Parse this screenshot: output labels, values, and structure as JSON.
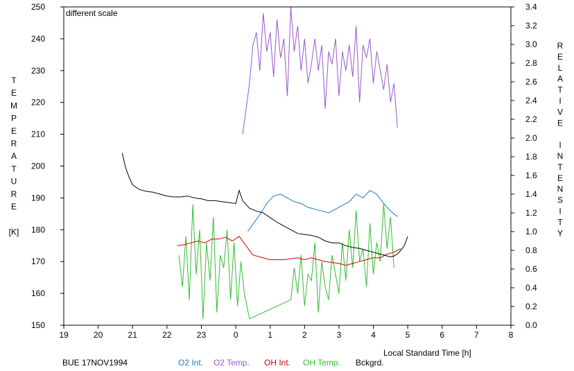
{
  "chart_data": {
    "type": "line",
    "title": "",
    "note": "different scale",
    "station_label": "BUE 17NOV1994",
    "xlabel": "Local Standard Time [h]",
    "ylabel_left_letters": [
      "T",
      "E",
      "M",
      "P",
      "E",
      "R",
      "A",
      "T",
      "U",
      "R",
      "E",
      "",
      "[K]"
    ],
    "ylabel_right_letters": [
      "R",
      "E",
      "L",
      "A",
      "T",
      "I",
      "V",
      "E",
      "",
      "I",
      "N",
      "T",
      "E",
      "N",
      "S",
      "I",
      "T",
      "Y"
    ],
    "x_ticks": [
      "19",
      "20",
      "21",
      "22",
      "23",
      "0",
      "1",
      "2",
      "3",
      "4",
      "5",
      "6",
      "7",
      "8"
    ],
    "x_range": [
      19,
      32
    ],
    "y_left_range": [
      150,
      250
    ],
    "y_left_ticks": [
      150,
      160,
      170,
      180,
      190,
      200,
      210,
      220,
      230,
      240,
      250
    ],
    "y_right_range": [
      0.0,
      3.4
    ],
    "y_right_ticks": [
      "0.0",
      "0.2",
      "0.4",
      "0.6",
      "0.8",
      "1.0",
      "1.2",
      "1.4",
      "1.6",
      "1.8",
      "2.0",
      "2.2",
      "2.4",
      "2.6",
      "2.8",
      "3.0",
      "3.2",
      "3.4"
    ],
    "colors": {
      "o2_int": "#2277cc",
      "o2_temp": "#9955cc",
      "oh_int": "#cc0000",
      "oh_temp": "#33bb33",
      "bckgrd": "#000000",
      "note": "#22bb22"
    },
    "legend": [
      {
        "key": "o2_int",
        "label": "O2 Int."
      },
      {
        "key": "o2_temp",
        "label": "O2 Temp."
      },
      {
        "key": "oh_int",
        "label": "OH Int."
      },
      {
        "key": "oh_temp",
        "label": "OH Temp."
      },
      {
        "key": "bckgrd",
        "label": "Bckgrd."
      }
    ],
    "series": [
      {
        "name": "Bckgrd.",
        "axis": "right",
        "key": "bckgrd",
        "x": [
          20.7,
          20.8,
          20.9,
          21.0,
          21.2,
          21.4,
          21.6,
          21.8,
          22.0,
          22.2,
          22.4,
          22.6,
          22.8,
          23.0,
          23.2,
          23.4,
          23.6,
          23.8,
          24.0,
          24.1,
          24.2,
          24.4,
          24.6,
          24.8,
          25.0,
          25.2,
          25.4,
          25.6,
          25.8,
          26.0,
          26.2,
          26.4,
          26.6,
          26.8,
          27.0,
          27.2,
          27.4,
          27.6,
          27.8,
          28.0,
          28.2,
          28.4,
          28.5,
          28.6,
          28.7,
          28.8,
          28.9,
          29.0
        ],
        "y": [
          1.84,
          1.68,
          1.58,
          1.5,
          1.45,
          1.43,
          1.42,
          1.4,
          1.38,
          1.37,
          1.37,
          1.38,
          1.36,
          1.35,
          1.33,
          1.33,
          1.32,
          1.31,
          1.3,
          1.44,
          1.33,
          1.25,
          1.22,
          1.2,
          1.15,
          1.1,
          1.06,
          1.02,
          0.98,
          0.97,
          0.96,
          0.94,
          0.9,
          0.88,
          0.88,
          0.85,
          0.83,
          0.82,
          0.8,
          0.78,
          0.76,
          0.74,
          0.73,
          0.74,
          0.76,
          0.8,
          0.85,
          0.95
        ]
      },
      {
        "name": "O2 Int.",
        "axis": "right",
        "key": "o2_int",
        "x": [
          24.35,
          24.5,
          24.7,
          24.9,
          25.1,
          25.3,
          25.5,
          25.7,
          25.9,
          26.1,
          26.3,
          26.5,
          26.7,
          26.9,
          27.1,
          27.3,
          27.5,
          27.7,
          27.9,
          28.1,
          28.3,
          28.5,
          28.7
        ],
        "y": [
          1.0,
          1.08,
          1.18,
          1.3,
          1.38,
          1.4,
          1.36,
          1.32,
          1.3,
          1.26,
          1.24,
          1.22,
          1.2,
          1.24,
          1.28,
          1.32,
          1.4,
          1.36,
          1.44,
          1.4,
          1.3,
          1.22,
          1.16
        ]
      },
      {
        "name": "O2 Temp.",
        "axis": "left",
        "key": "o2_temp",
        "x": [
          24.2,
          24.3,
          24.4,
          24.5,
          24.6,
          24.7,
          24.8,
          24.9,
          25.0,
          25.1,
          25.2,
          25.3,
          25.4,
          25.5,
          25.6,
          25.7,
          25.8,
          25.9,
          26.0,
          26.1,
          26.2,
          26.3,
          26.4,
          26.5,
          26.6,
          26.7,
          26.8,
          26.9,
          27.0,
          27.1,
          27.2,
          27.3,
          27.4,
          27.5,
          27.6,
          27.7,
          27.8,
          27.9,
          28.0,
          28.1,
          28.2,
          28.3,
          28.4,
          28.5,
          28.6,
          28.7
        ],
        "y": [
          210,
          218,
          226,
          238,
          242,
          230,
          248,
          236,
          242,
          228,
          246,
          234,
          240,
          222,
          250,
          236,
          244,
          230,
          240,
          226,
          232,
          240,
          230,
          238,
          218,
          236,
          232,
          240,
          222,
          236,
          230,
          238,
          228,
          244,
          220,
          238,
          234,
          240,
          226,
          236,
          230,
          224,
          232,
          220,
          226,
          212
        ]
      },
      {
        "name": "OH Int.",
        "axis": "right",
        "key": "oh_int",
        "x": [
          22.3,
          22.5,
          22.7,
          22.9,
          23.1,
          23.3,
          23.5,
          23.7,
          23.9,
          24.1,
          24.5,
          25.0,
          25.4,
          25.8,
          26.0,
          26.2,
          26.6,
          27.0,
          27.2,
          27.4,
          27.6,
          27.8,
          28.0,
          28.2,
          28.4,
          28.6,
          28.8
        ],
        "y": [
          0.85,
          0.86,
          0.88,
          0.9,
          0.88,
          0.92,
          0.92,
          0.94,
          0.9,
          0.95,
          0.75,
          0.7,
          0.7,
          0.72,
          0.7,
          0.72,
          0.68,
          0.66,
          0.64,
          0.66,
          0.68,
          0.7,
          0.72,
          0.72,
          0.76,
          0.78,
          0.82
        ]
      },
      {
        "name": "OH Temp.",
        "axis": "left",
        "key": "oh_temp",
        "x": [
          22.35,
          22.45,
          22.55,
          22.65,
          22.75,
          22.85,
          22.95,
          23.05,
          23.15,
          23.25,
          23.35,
          23.45,
          23.55,
          23.65,
          23.75,
          23.85,
          23.95,
          24.05,
          24.15,
          24.25,
          24.4,
          25.6,
          25.7,
          25.8,
          25.9,
          26.0,
          26.1,
          26.2,
          26.3,
          26.4,
          26.5,
          26.6,
          26.7,
          26.8,
          26.9,
          27.0,
          27.1,
          27.2,
          27.3,
          27.4,
          27.5,
          27.6,
          27.7,
          27.8,
          27.9,
          28.0,
          28.1,
          28.2,
          28.3,
          28.4,
          28.5,
          28.6
        ],
        "y": [
          172,
          162,
          178,
          158,
          188,
          166,
          180,
          152,
          176,
          164,
          184,
          154,
          172,
          168,
          180,
          158,
          176,
          156,
          170,
          160,
          152,
          158,
          168,
          160,
          172,
          156,
          166,
          164,
          176,
          154,
          170,
          162,
          158,
          172,
          166,
          160,
          176,
          164,
          180,
          168,
          186,
          170,
          174,
          162,
          182,
          166,
          176,
          170,
          188,
          174,
          184,
          168
        ]
      }
    ]
  }
}
